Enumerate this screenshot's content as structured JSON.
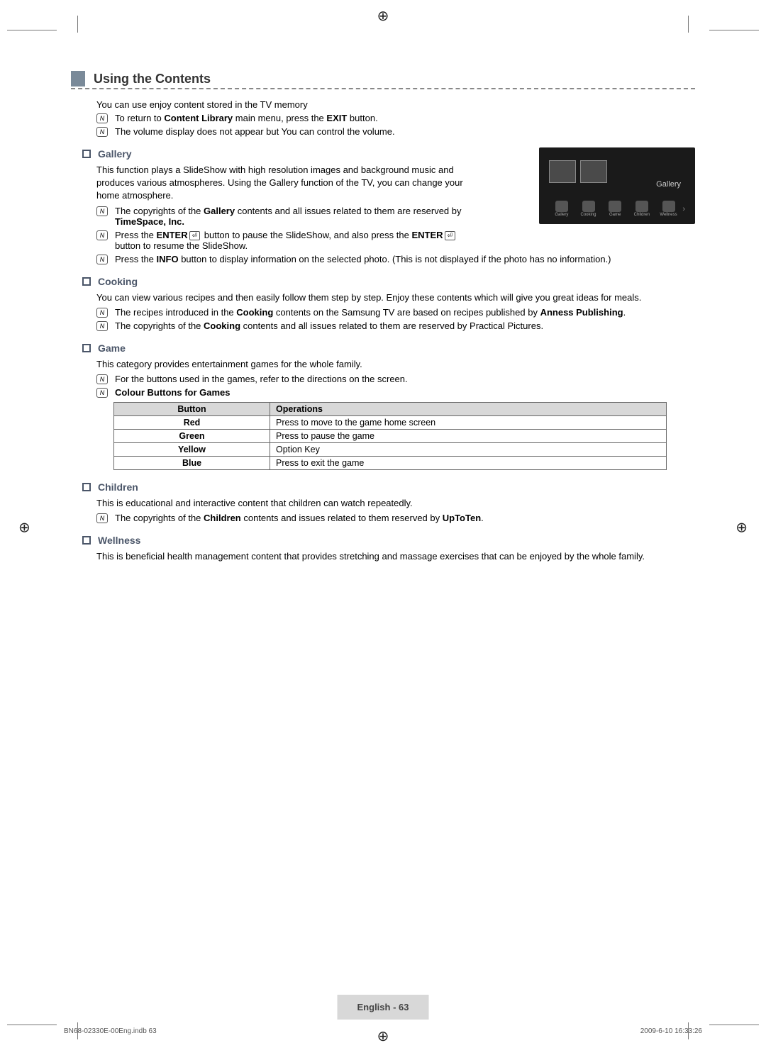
{
  "heading": "Using the Contents",
  "intro": "You can use enjoy content stored in the TV memory",
  "intro_notes": [
    {
      "pre": "To return to ",
      "b1": "Content Library",
      "mid": " main menu, press the ",
      "b2": "EXIT",
      "post": " button."
    },
    {
      "pre": "The volume display does not appear but You can control the volume.",
      "b1": "",
      "mid": "",
      "b2": "",
      "post": ""
    }
  ],
  "gallery": {
    "title": "Gallery",
    "body": "This function plays a SlideShow with high resolution images and background music and produces various atmospheres. Using the Gallery function of the TV, you can change your home atmosphere.",
    "notes": [
      {
        "pre": "The copyrights of the ",
        "b1": "Gallery",
        "mid": " contents and all issues related to them are reserved by ",
        "b2": "TimeSpace, Inc.",
        "post": ""
      },
      {
        "pre": "Press the ",
        "b1": "ENTER",
        "mid": "E button to pause the SlideShow, and also press the ",
        "b2": "ENTER",
        "post": "E button to resume the SlideShow."
      },
      {
        "pre": "Press the ",
        "b1": "INFO",
        "mid": " button to display information on the selected photo. (This is not displayed if the photo has no information.)",
        "b2": "",
        "post": ""
      }
    ]
  },
  "cooking": {
    "title": "Cooking",
    "body": "You can view various recipes and then easily follow them step by step. Enjoy these contents which will give you great ideas for meals.",
    "notes": [
      {
        "pre": "The recipes introduced in the ",
        "b1": "Cooking",
        "mid": " contents on the Samsung TV are based on recipes published by ",
        "b2": "Anness Publishing",
        "post": "."
      },
      {
        "pre": "The copyrights of the ",
        "b1": "Cooking",
        "mid": " contents and all issues related to them are reserved by Practical Pictures.",
        "b2": "",
        "post": ""
      }
    ]
  },
  "game": {
    "title": "Game",
    "body": "This category provides entertainment games for the whole family.",
    "notes": [
      {
        "pre": "For the buttons used in the games, refer to the directions on the screen.",
        "b1": "",
        "mid": "",
        "b2": "",
        "post": ""
      },
      {
        "pre": "",
        "b1": "Colour Buttons for Games",
        "mid": "",
        "b2": "",
        "post": ""
      }
    ],
    "table": {
      "headers": [
        "Button",
        "Operations"
      ],
      "rows": [
        [
          "Red",
          "Press to move to the game home screen"
        ],
        [
          "Green",
          "Press to pause the game"
        ],
        [
          "Yellow",
          "Option Key"
        ],
        [
          "Blue",
          "Press to exit the game"
        ]
      ]
    }
  },
  "children": {
    "title": "Children",
    "body": "This is educational and interactive content that children can watch repeatedly.",
    "notes": [
      {
        "pre": "The copyrights of the ",
        "b1": "Children",
        "mid": " contents and issues related to them reserved by ",
        "b2": "UpToTen",
        "post": "."
      }
    ]
  },
  "wellness": {
    "title": "Wellness",
    "body": "This is beneficial health management content that provides stretching and massage exercises that can be enjoyed by the whole family."
  },
  "screenshot": {
    "label": "Gallery",
    "items": [
      "Gallery",
      "Cooking",
      "Game",
      "Children",
      "Wellness"
    ]
  },
  "page_label": "English - 63",
  "footer_left": "BN68-02330E-00Eng.indb   63",
  "footer_right": "2009-6-10   16:33:26",
  "colors": {
    "accent": "#7a8a99",
    "subhead": "#4a5568",
    "table_header_bg": "#d8d8d8",
    "table_border": "#666666",
    "screenshot_bg": "#1a1a1a"
  }
}
